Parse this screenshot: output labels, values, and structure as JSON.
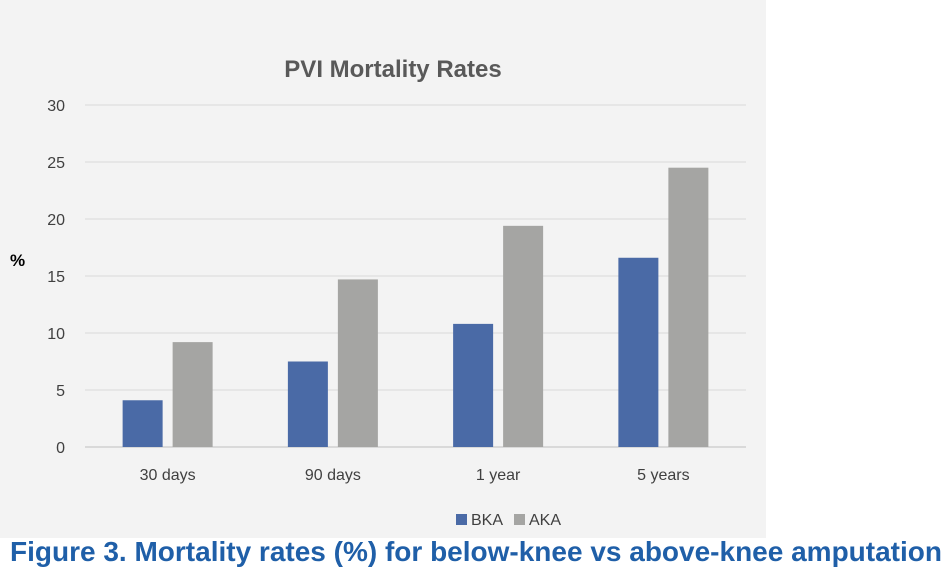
{
  "chart_data": {
    "type": "bar",
    "title": "PVI Mortality Rates",
    "xlabel": "",
    "ylabel": "%",
    "ylim": [
      0,
      30
    ],
    "yticks": [
      0,
      5,
      10,
      15,
      20,
      25,
      30
    ],
    "categories": [
      "30 days",
      "90 days",
      "1 year",
      "5 years"
    ],
    "series": [
      {
        "name": "BKA",
        "color": "#4a6aa6",
        "values": [
          4.1,
          7.5,
          10.8,
          16.6
        ]
      },
      {
        "name": "AKA",
        "color": "#a5a5a3",
        "values": [
          9.2,
          14.7,
          19.4,
          24.5
        ]
      }
    ],
    "legend_position": "bottom-right",
    "grid": true
  },
  "caption": "Figure 3. Mortality rates (%) for below-knee vs above-knee amputation"
}
